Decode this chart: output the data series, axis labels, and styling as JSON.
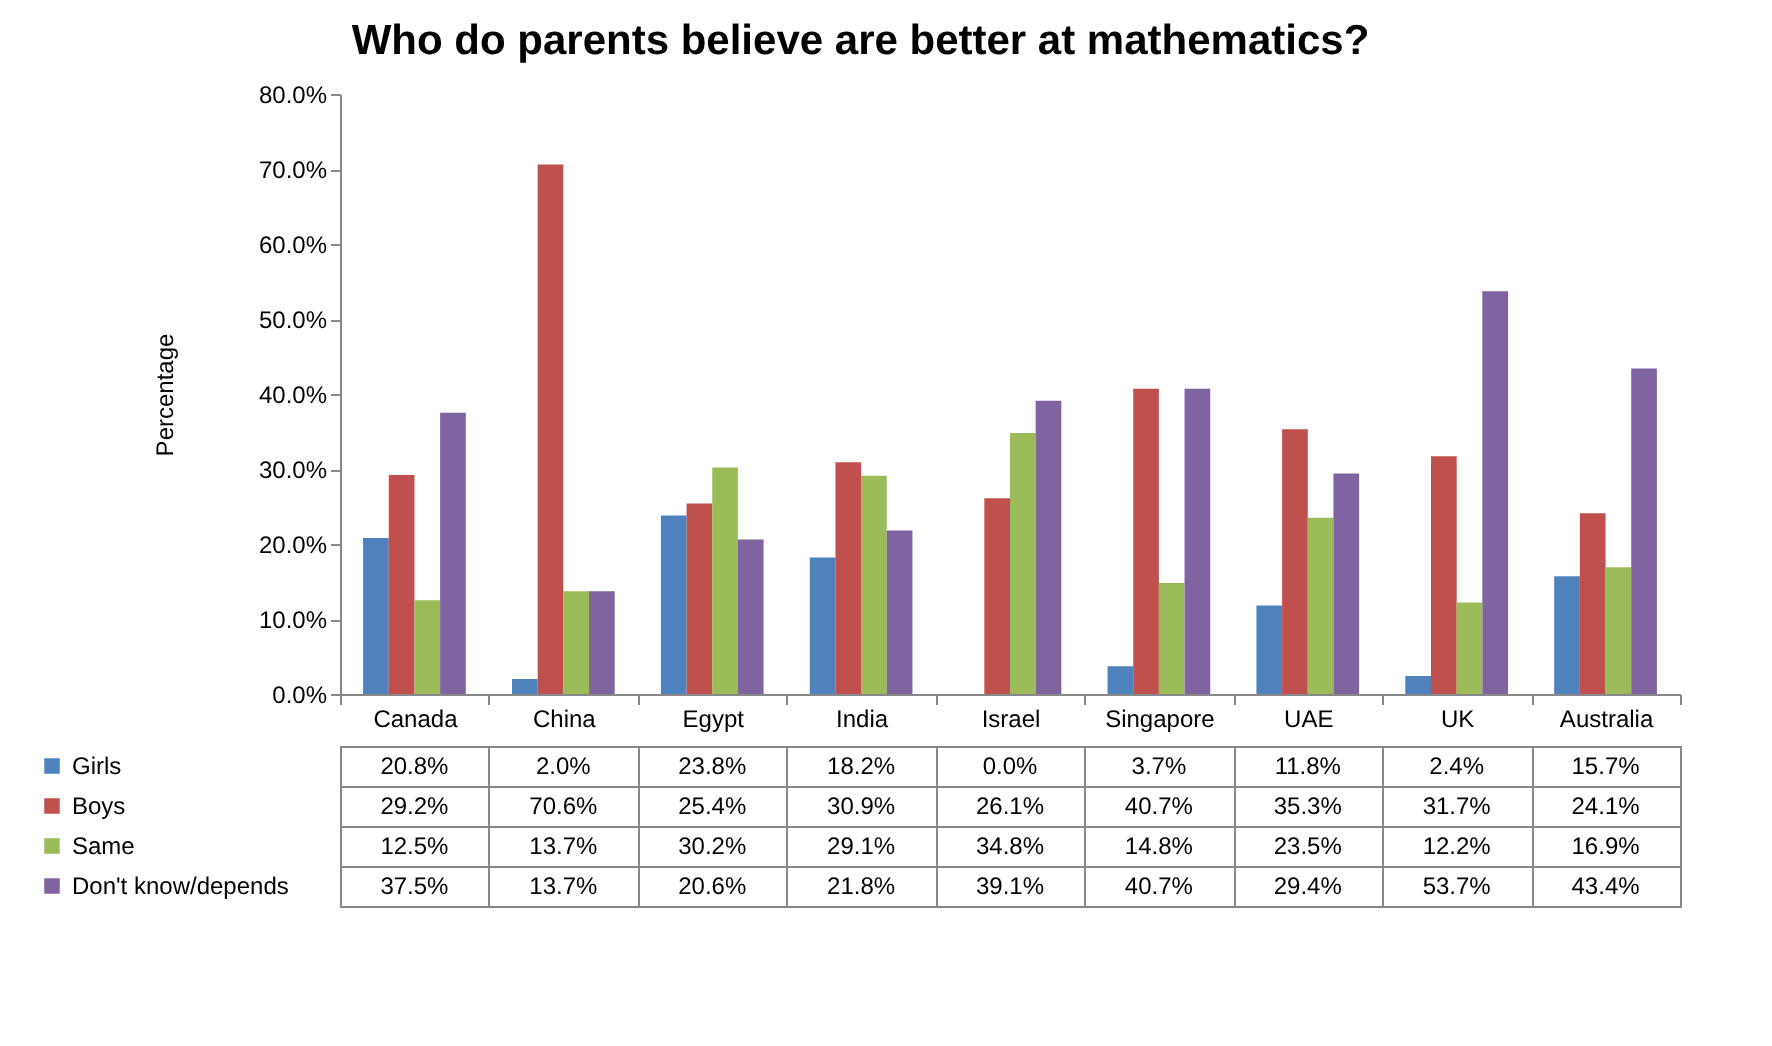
{
  "chart_data": {
    "type": "bar",
    "title": "Who do parents believe are better at mathematics?",
    "ylabel": "Percentage",
    "categories": [
      "Canada",
      "China",
      "Egypt",
      "India",
      "Israel",
      "Singapore",
      "UAE",
      "UK",
      "Australia"
    ],
    "series": [
      {
        "name": "Girls",
        "color": "#4f81bd",
        "values": [
          20.8,
          2.0,
          23.8,
          18.2,
          0.0,
          3.7,
          11.8,
          2.4,
          15.7
        ],
        "value_labels": [
          "20.8%",
          "2.0%",
          "23.8%",
          "18.2%",
          "0.0%",
          "3.7%",
          "11.8%",
          "2.4%",
          "15.7%"
        ]
      },
      {
        "name": "Boys",
        "color": "#c0504d",
        "values": [
          29.2,
          70.6,
          25.4,
          30.9,
          26.1,
          40.7,
          35.3,
          31.7,
          24.1
        ],
        "value_labels": [
          "29.2%",
          "70.6%",
          "25.4%",
          "30.9%",
          "26.1%",
          "40.7%",
          "35.3%",
          "31.7%",
          "24.1%"
        ]
      },
      {
        "name": "Same",
        "color": "#9bbb59",
        "values": [
          12.5,
          13.7,
          30.2,
          29.1,
          34.8,
          14.8,
          23.5,
          12.2,
          16.9
        ],
        "value_labels": [
          "12.5%",
          "13.7%",
          "30.2%",
          "29.1%",
          "34.8%",
          "14.8%",
          "23.5%",
          "12.2%",
          "16.9%"
        ]
      },
      {
        "name": "Don't know/depends",
        "color": "#8064a2",
        "values": [
          37.5,
          13.7,
          20.6,
          21.8,
          39.1,
          40.7,
          29.4,
          53.7,
          43.4
        ],
        "value_labels": [
          "37.5%",
          "13.7%",
          "20.6%",
          "21.8%",
          "39.1%",
          "40.7%",
          "29.4%",
          "53.7%",
          "43.4%"
        ]
      }
    ],
    "ylim": [
      0,
      80
    ],
    "yticks": [
      {
        "value": 0,
        "label": "0.0%"
      },
      {
        "value": 10,
        "label": "10.0%"
      },
      {
        "value": 20,
        "label": "20.0%"
      },
      {
        "value": 30,
        "label": "30.0%"
      },
      {
        "value": 40,
        "label": "40.0%"
      },
      {
        "value": 50,
        "label": "50.0%"
      },
      {
        "value": 60,
        "label": "60.0%"
      },
      {
        "value": 70,
        "label": "70.0%"
      },
      {
        "value": 80,
        "label": "80.0%"
      }
    ],
    "grid": false,
    "legend": "bottom left"
  }
}
